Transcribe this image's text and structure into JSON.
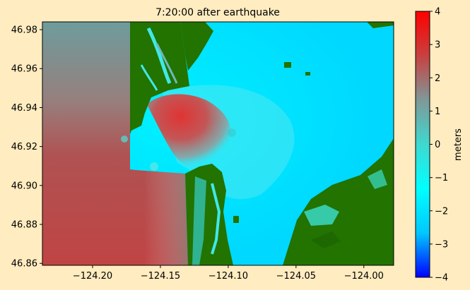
{
  "chart_data": {
    "type": "heatmap",
    "title": "7:20:00 after earthquake",
    "xlim": [
      -124.237,
      -123.978
    ],
    "ylim": [
      46.859,
      46.984
    ],
    "x_ticks": [
      -124.2,
      -124.15,
      -124.1,
      -124.05,
      -124.0
    ],
    "x_tick_labels": [
      "−124.20",
      "−124.15",
      "−124.10",
      "−124.05",
      "−124.00"
    ],
    "y_ticks": [
      46.86,
      46.88,
      46.9,
      46.92,
      46.94,
      46.96,
      46.98
    ],
    "y_tick_labels": [
      "46.86",
      "46.88",
      "46.90",
      "46.92",
      "46.94",
      "46.96",
      "46.98"
    ],
    "colorbar": {
      "label": "meters",
      "range": [
        -4,
        4
      ],
      "ticks": [
        -4,
        -3,
        -2,
        -1,
        0,
        1,
        2,
        3,
        4
      ],
      "tick_labels": [
        "−4",
        "−3",
        "−2",
        "−1",
        "0",
        "1",
        "2",
        "3",
        "4"
      ],
      "colormap": [
        "#0000ff",
        "#00c8ff",
        "#00ffff",
        "#3fd8d0",
        "#809898",
        "#c84040",
        "#ff0000"
      ]
    },
    "land_color": "#227300",
    "approx_surface_height_m": {
      "open_ocean_south_west": 3.0,
      "open_ocean_north_west": 2.0,
      "bay_inlet_jet": 3.5,
      "bay_east": -0.3,
      "inner_channels": 0.2
    }
  }
}
